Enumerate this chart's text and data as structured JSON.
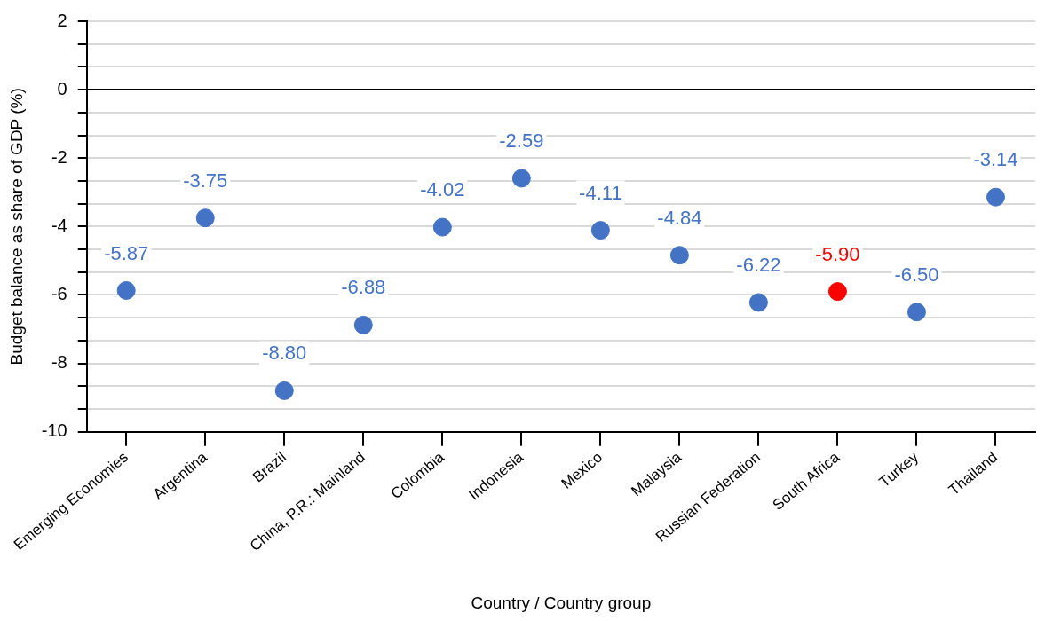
{
  "chart_data": {
    "type": "scatter",
    "xlabel": "Country / Country group",
    "ylabel": "Budget balance as share of GDP (%)",
    "categories": [
      "Emerging Economies",
      "Argentina",
      "Brazil",
      "China, P.R.: Mainland",
      "Colombia",
      "Indonesia",
      "Mexico",
      "Malaysia",
      "Russian Federation",
      "South Africa",
      "Turkey",
      "Thailand"
    ],
    "values": [
      -5.87,
      -3.75,
      -8.8,
      -6.88,
      -4.02,
      -2.59,
      -4.11,
      -4.84,
      -6.22,
      -5.9,
      -6.5,
      -3.14
    ],
    "colors": [
      "#4472c4",
      "#4472c4",
      "#4472c4",
      "#4472c4",
      "#4472c4",
      "#4472c4",
      "#4472c4",
      "#4472c4",
      "#4472c4",
      "#ff0000",
      "#4472c4",
      "#4472c4"
    ],
    "value_labels": [
      "-5.87",
      "-3.75",
      "-8.80",
      "-6.88",
      "-4.02",
      "-2.59",
      "-4.11",
      "-4.84",
      "-6.22",
      "-5.90",
      "-6.50",
      "-3.14"
    ],
    "ylim": [
      -10,
      2
    ],
    "yticks": [
      2,
      {
        "value": 1.333,
        "label": null
      },
      {
        "value": 0.667,
        "label": null
      },
      0,
      {
        "value": -0.667,
        "label": null
      },
      {
        "value": -1.333,
        "label": null
      },
      -2,
      {
        "value": -2.667,
        "label": null
      },
      {
        "value": -3.333,
        "label": null
      },
      -4,
      {
        "value": -4.667,
        "label": null
      },
      {
        "value": -5.333,
        "label": null
      },
      -6,
      {
        "value": -6.667,
        "label": null
      },
      {
        "value": -7.333,
        "label": null
      },
      -8,
      {
        "value": -8.667,
        "label": null
      },
      {
        "value": -9.333,
        "label": null
      },
      -10
    ],
    "ref_lines": [
      {
        "axis": "y",
        "value": 0,
        "color": "#000000"
      }
    ],
    "grid": "y",
    "legend": false,
    "marker": "circle"
  }
}
